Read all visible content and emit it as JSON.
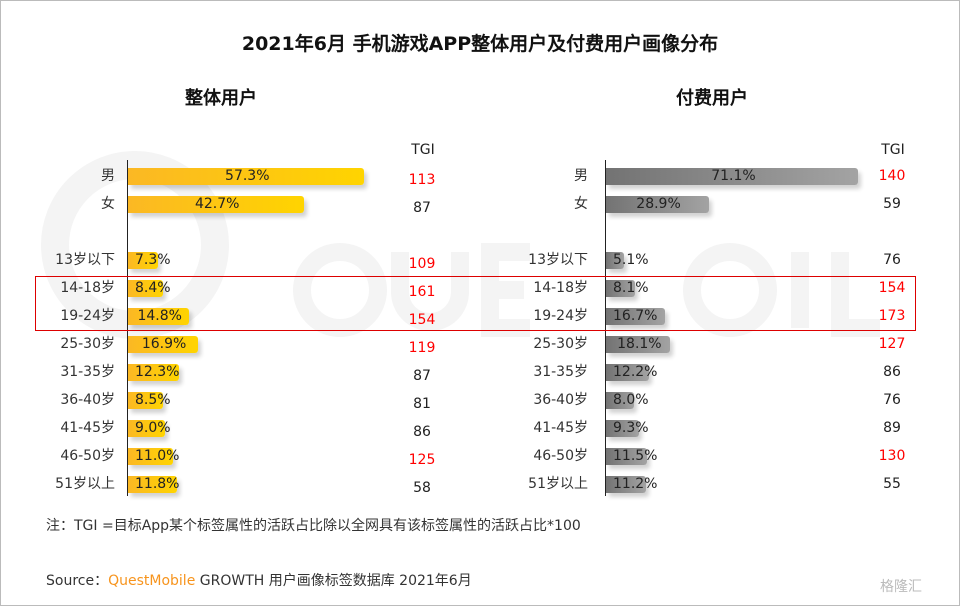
{
  "chart_data": {
    "type": "bar",
    "orientation": "horizontal",
    "title": "2021年6月 手机游戏APP整体用户及付费用户画像分布",
    "categories": [
      "男",
      "女",
      "13岁以下",
      "14-18岁",
      "19-24岁",
      "25-30岁",
      "31-35岁",
      "36-40岁",
      "41-45岁",
      "46-50岁",
      "51岁以上"
    ],
    "tgi_header": "TGI",
    "panels": [
      {
        "name": "整体用户",
        "color": "#ffc000",
        "values": [
          57.3,
          42.7,
          7.3,
          8.4,
          14.8,
          16.9,
          12.3,
          8.5,
          9.0,
          11.0,
          11.8
        ],
        "labels": [
          "57.3%",
          "42.7%",
          "7.3%",
          "8.4%",
          "14.8%",
          "16.9%",
          "12.3%",
          "8.5%",
          "9.0%",
          "11.0%",
          "11.8%"
        ],
        "tgi": [
          113,
          87,
          109,
          161,
          154,
          119,
          87,
          81,
          86,
          125,
          58
        ]
      },
      {
        "name": "付费用户",
        "color": "#808080",
        "values": [
          71.1,
          28.9,
          5.1,
          8.1,
          16.7,
          18.1,
          12.2,
          8.0,
          9.3,
          11.5,
          11.2
        ],
        "labels": [
          "71.1%",
          "28.9%",
          "5.1%",
          "8.1%",
          "16.7%",
          "18.1%",
          "12.2%",
          "8.0%",
          "9.3%",
          "11.5%",
          "11.2%"
        ],
        "tgi": [
          140,
          59,
          76,
          154,
          173,
          127,
          86,
          76,
          89,
          130,
          55
        ]
      }
    ],
    "tgi_highlight_threshold": 100,
    "highlight_color": "#ff0000",
    "highlighted_categories": [
      "14-18岁",
      "19-24岁"
    ]
  },
  "note": "注：TGI =目标App某个标签属性的活跃占比除以全网具有该标签属性的活跃占比*100",
  "source": {
    "prefix": "Source：",
    "brand": "QuestMobile",
    "rest": " GROWTH 用户画像标签数据库 2021年6月"
  },
  "watermark": "QUESTMOBILE",
  "logo": "格隆汇"
}
